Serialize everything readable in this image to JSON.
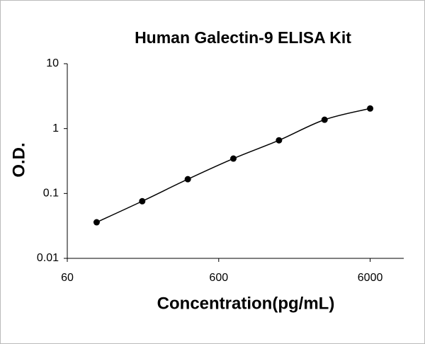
{
  "chart_data": {
    "type": "scatter",
    "title": "Human Galectin-9 ELISA Kit",
    "x_label": "Concentration(pg/mL)",
    "y_label": "O.D.",
    "x": [
      93.75,
      187.5,
      375,
      750,
      1500,
      3000,
      6000
    ],
    "values": [
      0.036,
      0.076,
      0.166,
      0.345,
      0.66,
      1.37,
      2.04
    ],
    "color": "#000000",
    "log_x": true,
    "log_y": true,
    "smooth_line": true,
    "xlim": [
      60,
      10000
    ],
    "xticks": [
      60,
      600,
      6000
    ],
    "ylim": [
      0.01,
      10
    ],
    "yticks": [
      0.01,
      0.1,
      1,
      10
    ]
  }
}
